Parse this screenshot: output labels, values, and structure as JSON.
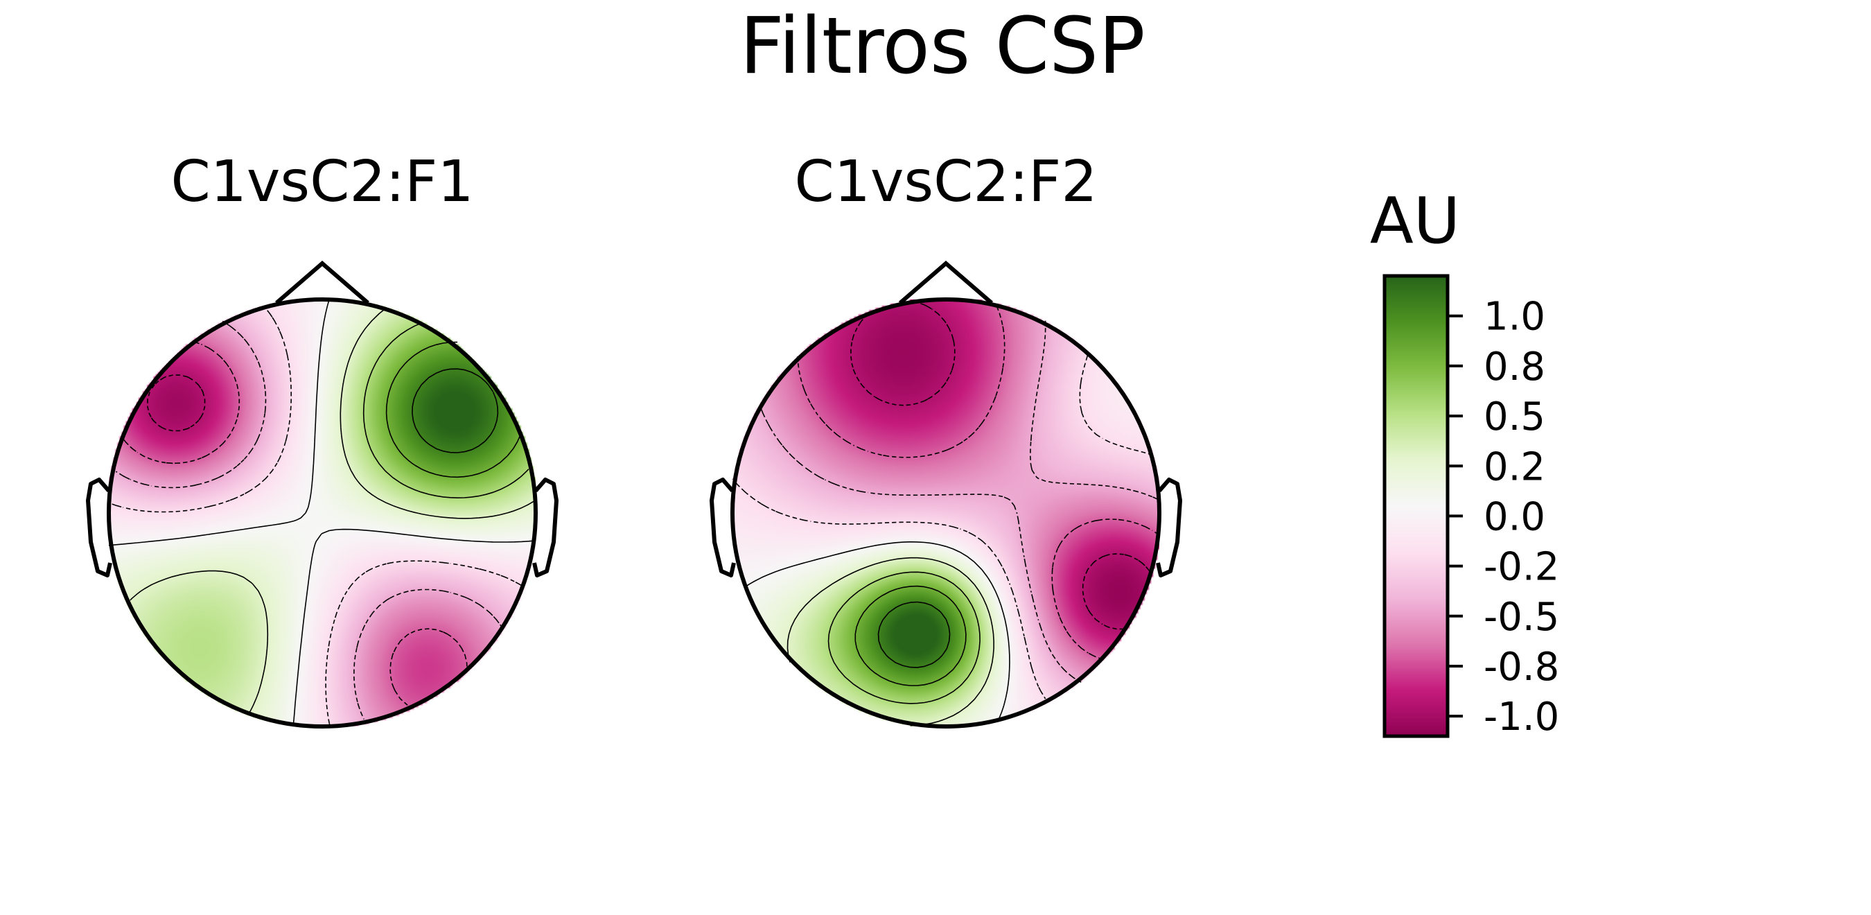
{
  "figure": {
    "title": "Filtros CSP"
  },
  "chart_data": {
    "type": "heatmap",
    "title": "Filtros CSP",
    "colormap": "PiYG",
    "vmin": -1.1,
    "vmax": 1.2,
    "colors": {
      "min": "#8e0152",
      "mid": "#f7f7f7",
      "max": "#276419"
    },
    "panels": [
      {
        "name": "C1vsC2:F1",
        "sources": [
          {
            "x": -0.68,
            "y": 0.5,
            "v": -1.05,
            "s": 0.35
          },
          {
            "x": 0.62,
            "y": 0.47,
            "v": 1.25,
            "s": 0.35
          },
          {
            "x": -0.5,
            "y": -0.62,
            "v": 0.55,
            "s": 0.45
          },
          {
            "x": 0.45,
            "y": -0.72,
            "v": -0.85,
            "s": 0.4
          }
        ]
      },
      {
        "name": "C1vsC2:F2",
        "sources": [
          {
            "x": -0.2,
            "y": 0.75,
            "v": -1.05,
            "s": 0.55
          },
          {
            "x": 0.7,
            "y": 0.55,
            "v": 0.15,
            "s": 0.25
          },
          {
            "x": -0.1,
            "y": -0.55,
            "v": 1.25,
            "s": 0.25
          },
          {
            "x": 0.82,
            "y": -0.38,
            "v": -1.05,
            "s": 0.35
          },
          {
            "x": -0.55,
            "y": -0.6,
            "v": 0.35,
            "s": 0.3
          }
        ]
      }
    ],
    "colorbar": {
      "label": "AU",
      "ticks": [
        "1.0",
        "0.8",
        "0.5",
        "0.2",
        "0.0",
        "-0.2",
        "-0.5",
        "-0.8",
        "-1.0"
      ],
      "tick_values": [
        1.0,
        0.75,
        0.5,
        0.25,
        0.0,
        -0.25,
        -0.5,
        -0.75,
        -1.0
      ]
    }
  }
}
